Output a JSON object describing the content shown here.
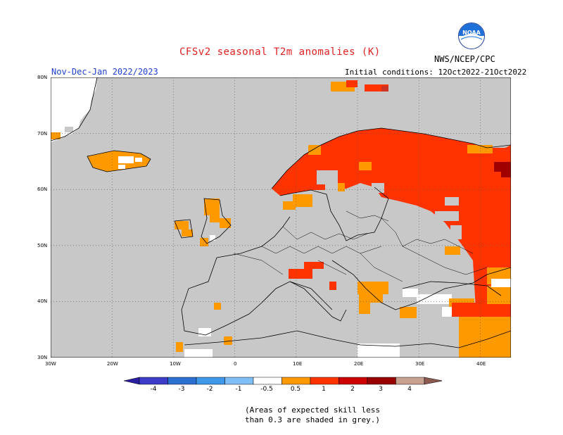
{
  "title": "CFSv2 seasonal T2m anomalies (K)",
  "agency": "NWS/NCEP/CPC",
  "logo_text": "NOAA",
  "period": "Nov-Dec-Jan 2022/2023",
  "initial_conditions": "Initial conditions: 12Oct2022-21Oct2022",
  "lat_labels": [
    "80N",
    "70N",
    "60N",
    "50N",
    "40N",
    "30N"
  ],
  "lon_labels": [
    "30W",
    "20W",
    "10W",
    "0",
    "10E",
    "20E",
    "30E",
    "40E"
  ],
  "colorbar": {
    "labels": [
      "-4",
      "-3",
      "-2",
      "-1",
      "-0.5",
      "0.5",
      "1",
      "2",
      "3",
      "4"
    ],
    "colors": [
      "#2a1fa0",
      "#3c3cc8",
      "#2c6fd2",
      "#3f98ea",
      "#7fbff5",
      "#ffffff",
      "#ff9900",
      "#ff3300",
      "#cc0000",
      "#990000",
      "#c8a090",
      "#8c5a50"
    ]
  },
  "note": [
    "(Areas of expected skill less",
    "than 0.3 are shaded in grey.)"
  ],
  "colors": {
    "ocean_grey": "#c8c8c8",
    "orange": "#ff9900",
    "red": "#ff3300",
    "dark_red": "#a00000"
  },
  "map_extent": {
    "lon": [
      -30,
      45
    ],
    "lat": [
      30,
      80
    ]
  }
}
